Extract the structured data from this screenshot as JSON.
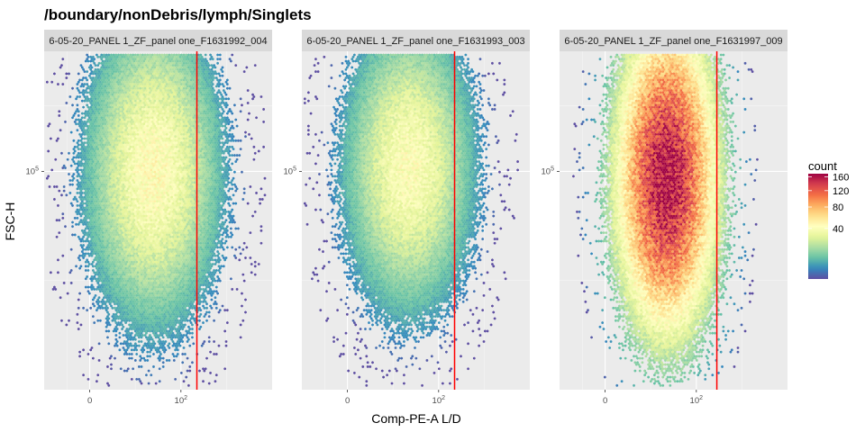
{
  "chart_data": {
    "type": "heatmap",
    "subtype": "hexbin-density-faceted",
    "title": "/boundary/nonDebris/lymph/Singlets",
    "xlabel": "Comp-PE-A L/D",
    "ylabel": "FSC-H",
    "x_scale": "biexponential",
    "y_scale": "log",
    "x_ticks": [
      {
        "value": 0,
        "label": "0"
      },
      {
        "value": 100,
        "label": "10",
        "exp": "2"
      }
    ],
    "y_ticks": [
      {
        "value": 100000,
        "label": "10",
        "exp": "5"
      }
    ],
    "grid": true,
    "legend": {
      "title": "count",
      "position": "right",
      "breaks": [
        160,
        120,
        80,
        40
      ],
      "range": [
        1,
        170
      ],
      "colors": [
        "#5E4FA2",
        "#3288BD",
        "#66C2A5",
        "#ABDDA4",
        "#E6F598",
        "#FFFFBF",
        "#FEE08B",
        "#FDAE61",
        "#F46D43",
        "#D53E4F",
        "#9E0142"
      ]
    },
    "gate_line_color": "#FF0000",
    "panels": [
      {
        "strip": "6-05-20_PANEL 1_ZF_panel one_F1631992_004",
        "center": {
          "x": 1.4,
          "y": 5.0
        },
        "spread": {
          "x": 0.75,
          "y": 0.36
        },
        "peak_count": 45,
        "gate_x": 2.35
      },
      {
        "strip": "6-05-20_PANEL 1_ZF_panel one_F1631993_003",
        "center": {
          "x": 1.35,
          "y": 5.02
        },
        "spread": {
          "x": 0.72,
          "y": 0.34
        },
        "peak_count": 42,
        "gate_x": 2.35
      },
      {
        "strip": "6-05-20_PANEL 1_ZF_panel one_F1631997_009",
        "center": {
          "x": 1.35,
          "y": 4.97
        },
        "spread": {
          "x": 0.62,
          "y": 0.4
        },
        "peak_count": 165,
        "gate_x": 2.45
      }
    ]
  }
}
